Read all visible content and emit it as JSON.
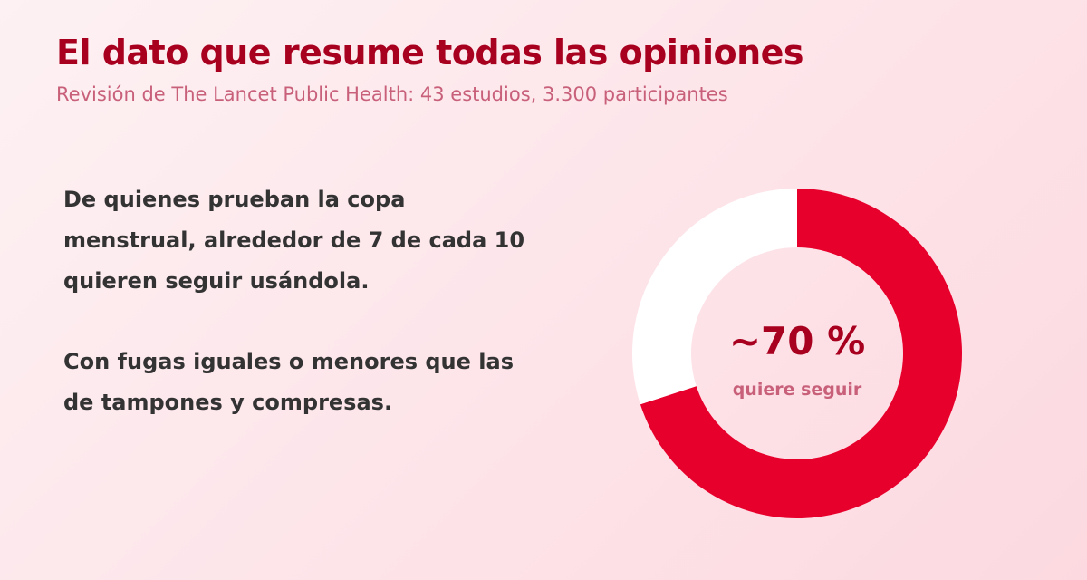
{
  "header": {
    "title": "El dato que resume todas las opiniones",
    "subtitle": "Revisión de The Lancet Public Health: 43 estudios, 3.300 participantes"
  },
  "body": {
    "paragraph_1": "De quienes prueban la copa menstrual, alrededor de 7 de cada 10 quieren seguir usándola.",
    "paragraph_2": "Con fugas iguales o menores que las de tampones y compresas."
  },
  "colors": {
    "primary": "#e8002d",
    "remainder": "#ffffff",
    "title": "#a8001f",
    "muted": "#c8607a",
    "text": "#333333"
  },
  "chart_data": {
    "type": "pie",
    "style": "donut",
    "values": [
      70,
      30
    ],
    "colors": [
      "#e8002d",
      "#ffffff"
    ],
    "center_value": "~70 %",
    "center_label": "quiere seguir"
  }
}
